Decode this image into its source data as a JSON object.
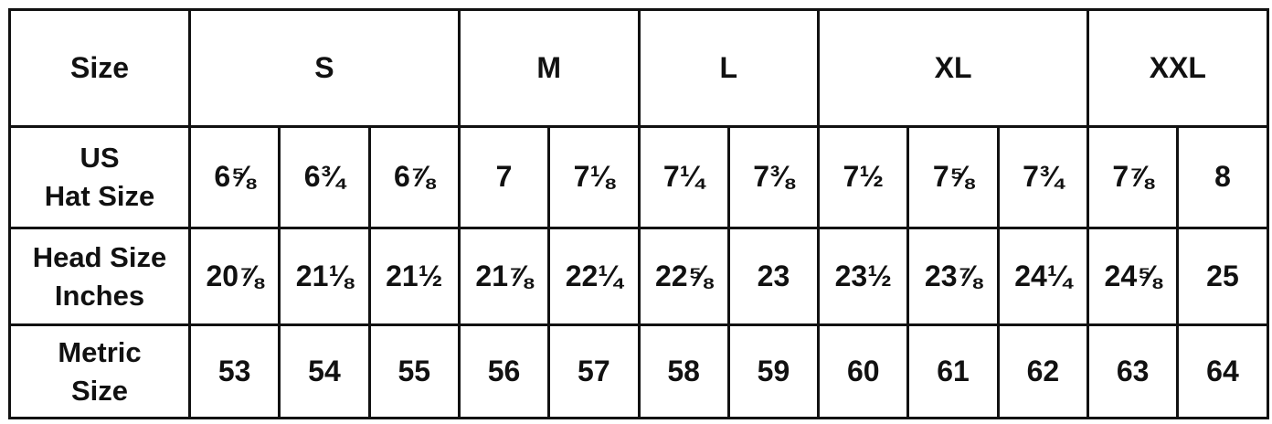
{
  "table": {
    "header": {
      "label": "Size",
      "groups": [
        {
          "label": "S",
          "span": 3
        },
        {
          "label": "M",
          "span": 2
        },
        {
          "label": "L",
          "span": 2
        },
        {
          "label": "XL",
          "span": 3
        },
        {
          "label": "XXL",
          "span": 2
        }
      ]
    },
    "rows": [
      {
        "label_lines": [
          "US",
          "Hat Size"
        ],
        "values": [
          "6⅝",
          "6¾",
          "6⅞",
          "7",
          "7⅛",
          "7¼",
          "7⅜",
          "7½",
          "7⅝",
          "7¾",
          "7⅞",
          "8"
        ]
      },
      {
        "label_lines": [
          "Head Size",
          "Inches"
        ],
        "values": [
          "20⅞",
          "21⅛",
          "21½",
          "21⅞",
          "22¼",
          "22⅝",
          "23",
          "23½",
          "23⅞",
          "24¼",
          "24⅝",
          "25"
        ]
      },
      {
        "label_lines": [
          "Metric",
          "Size"
        ],
        "values": [
          "53",
          "54",
          "55",
          "56",
          "57",
          "58",
          "59",
          "60",
          "61",
          "62",
          "63",
          "64"
        ]
      }
    ]
  }
}
